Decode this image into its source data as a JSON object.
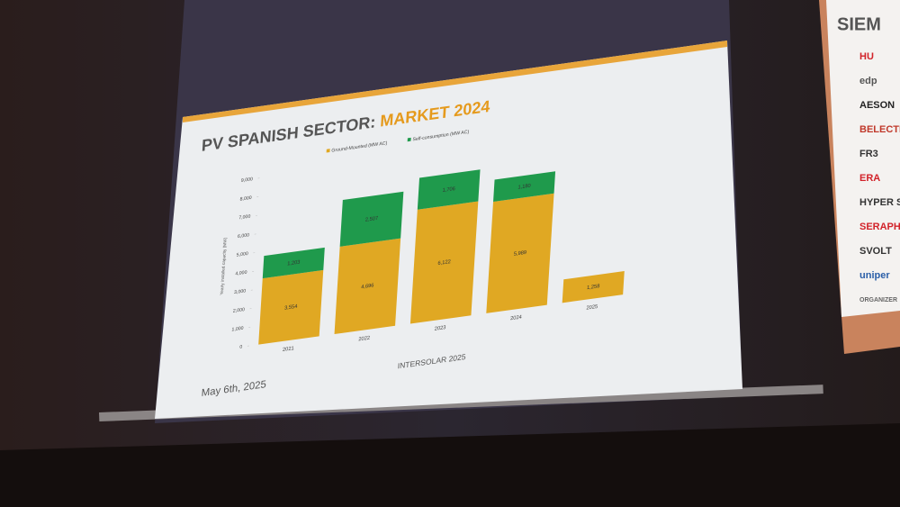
{
  "chart_data": {
    "type": "stacked_bar",
    "title": "PV SPANISH SECTOR:",
    "title_highlight": "MARKET 2024",
    "y_label": "Yearly installed capacity (MW)",
    "categories": [
      "2021",
      "2022",
      "2023",
      "2024",
      "2025"
    ],
    "series": [
      {
        "name": "Ground-Mounted (MW AC)",
        "color": "#e0a823",
        "values": [
          3554,
          4696,
          6122,
          5989,
          1258
        ],
        "value_labels": [
          "3,554",
          "4,696",
          "6,122",
          "5,989",
          "1,258"
        ]
      },
      {
        "name": "Self-consumption (MW AC)",
        "color": "#1f9a4c",
        "values": [
          1203,
          2507,
          1706,
          1180,
          null
        ],
        "value_labels": [
          "1,203",
          "2,507",
          "1,706",
          "1,180",
          null
        ]
      }
    ],
    "ylim": [
      0,
      9000
    ],
    "yticks": [
      0,
      {
        "value": 1000,
        "label": "1,000"
      },
      {
        "value": 2000,
        "label": "2,000"
      },
      {
        "value": 3000,
        "label": "3,000"
      },
      {
        "value": 4000,
        "label": "4,000"
      },
      {
        "value": 5000,
        "label": "5,000"
      },
      {
        "value": 6000,
        "label": "6,000"
      },
      {
        "value": 7000,
        "label": "7,000"
      },
      {
        "value": 8000,
        "label": "8,000"
      },
      {
        "value": 9000,
        "label": "9,000"
      }
    ],
    "legend": "top",
    "grid": false
  },
  "footer": {
    "date": "May 6th, 2025",
    "event": "INTERSOLAR 2025"
  },
  "sponsors": [
    "SIEM",
    "HU",
    "edp",
    "AESON",
    "BELECTRIC",
    "FR3",
    "ERA",
    "HYPER STRONG",
    "SERAPHI",
    "SVOLT",
    "uniper",
    "ORGANIZER"
  ]
}
